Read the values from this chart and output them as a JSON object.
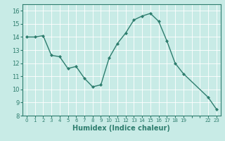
{
  "x": [
    0,
    1,
    2,
    3,
    4,
    5,
    6,
    7,
    8,
    9,
    10,
    11,
    12,
    13,
    14,
    15,
    16,
    17,
    18,
    19,
    22,
    23
  ],
  "y": [
    14.0,
    14.0,
    14.1,
    12.6,
    12.5,
    11.6,
    11.75,
    10.85,
    10.2,
    10.35,
    12.4,
    13.5,
    14.3,
    15.3,
    15.6,
    15.8,
    15.2,
    13.7,
    12.0,
    11.2,
    9.4,
    8.5
  ],
  "line_color": "#2e7d6e",
  "marker": "D",
  "marker_size": 2.0,
  "linewidth": 1.0,
  "bg_color": "#c8ebe6",
  "grid_color": "#ffffff",
  "tick_color": "#2e7d6e",
  "xlabel": "Humidex (Indice chaleur)",
  "xlabel_fontsize": 7,
  "xlim": [
    -0.5,
    23.5
  ],
  "ylim": [
    8,
    16.5
  ],
  "yticks": [
    8,
    9,
    10,
    11,
    12,
    13,
    14,
    15,
    16
  ],
  "xtick_labels": [
    "0",
    "1",
    "2",
    "3",
    "4",
    "5",
    "6",
    "7",
    "8",
    "9",
    "10",
    "11",
    "12",
    "13",
    "14",
    "15",
    "16",
    "17",
    "18",
    "19",
    "",
    "",
    "22",
    "23"
  ],
  "xtick_positions": [
    0,
    1,
    2,
    3,
    4,
    5,
    6,
    7,
    8,
    9,
    10,
    11,
    12,
    13,
    14,
    15,
    16,
    17,
    18,
    19,
    20,
    21,
    22,
    23
  ]
}
